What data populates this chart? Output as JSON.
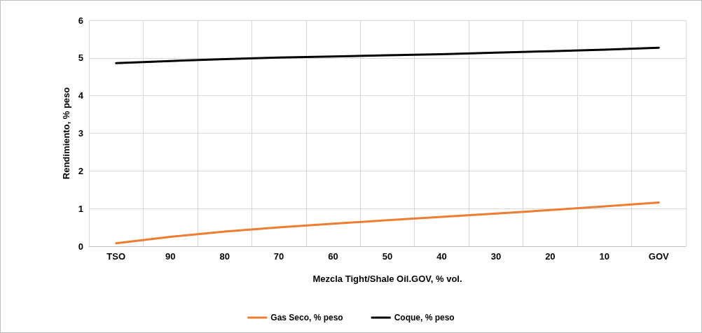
{
  "chart_data": {
    "type": "line",
    "xlabel": "Mezcla Tight/Shale Oil.GOV, % vol.",
    "ylabel": "Rendimiento, % peso",
    "categories": [
      "TSO",
      "90",
      "80",
      "70",
      "60",
      "50",
      "40",
      "30",
      "20",
      "10",
      "GOV"
    ],
    "series": [
      {
        "name": "Gas Seco, % peso",
        "color": "#ed7d31",
        "values": [
          0.08,
          0.25,
          0.39,
          0.5,
          0.6,
          0.69,
          0.78,
          0.87,
          0.96,
          1.06,
          1.16
        ]
      },
      {
        "name": "Coque, % peso",
        "color": "#000000",
        "values": [
          4.86,
          4.92,
          4.97,
          5.01,
          5.04,
          5.07,
          5.1,
          5.14,
          5.18,
          5.22,
          5.27
        ]
      }
    ],
    "ylim": [
      0,
      6
    ],
    "yticks": [
      0,
      1,
      2,
      3,
      4,
      5,
      6
    ],
    "grid": true,
    "legend": "bottom",
    "marker": "none",
    "line_style": "solid"
  }
}
